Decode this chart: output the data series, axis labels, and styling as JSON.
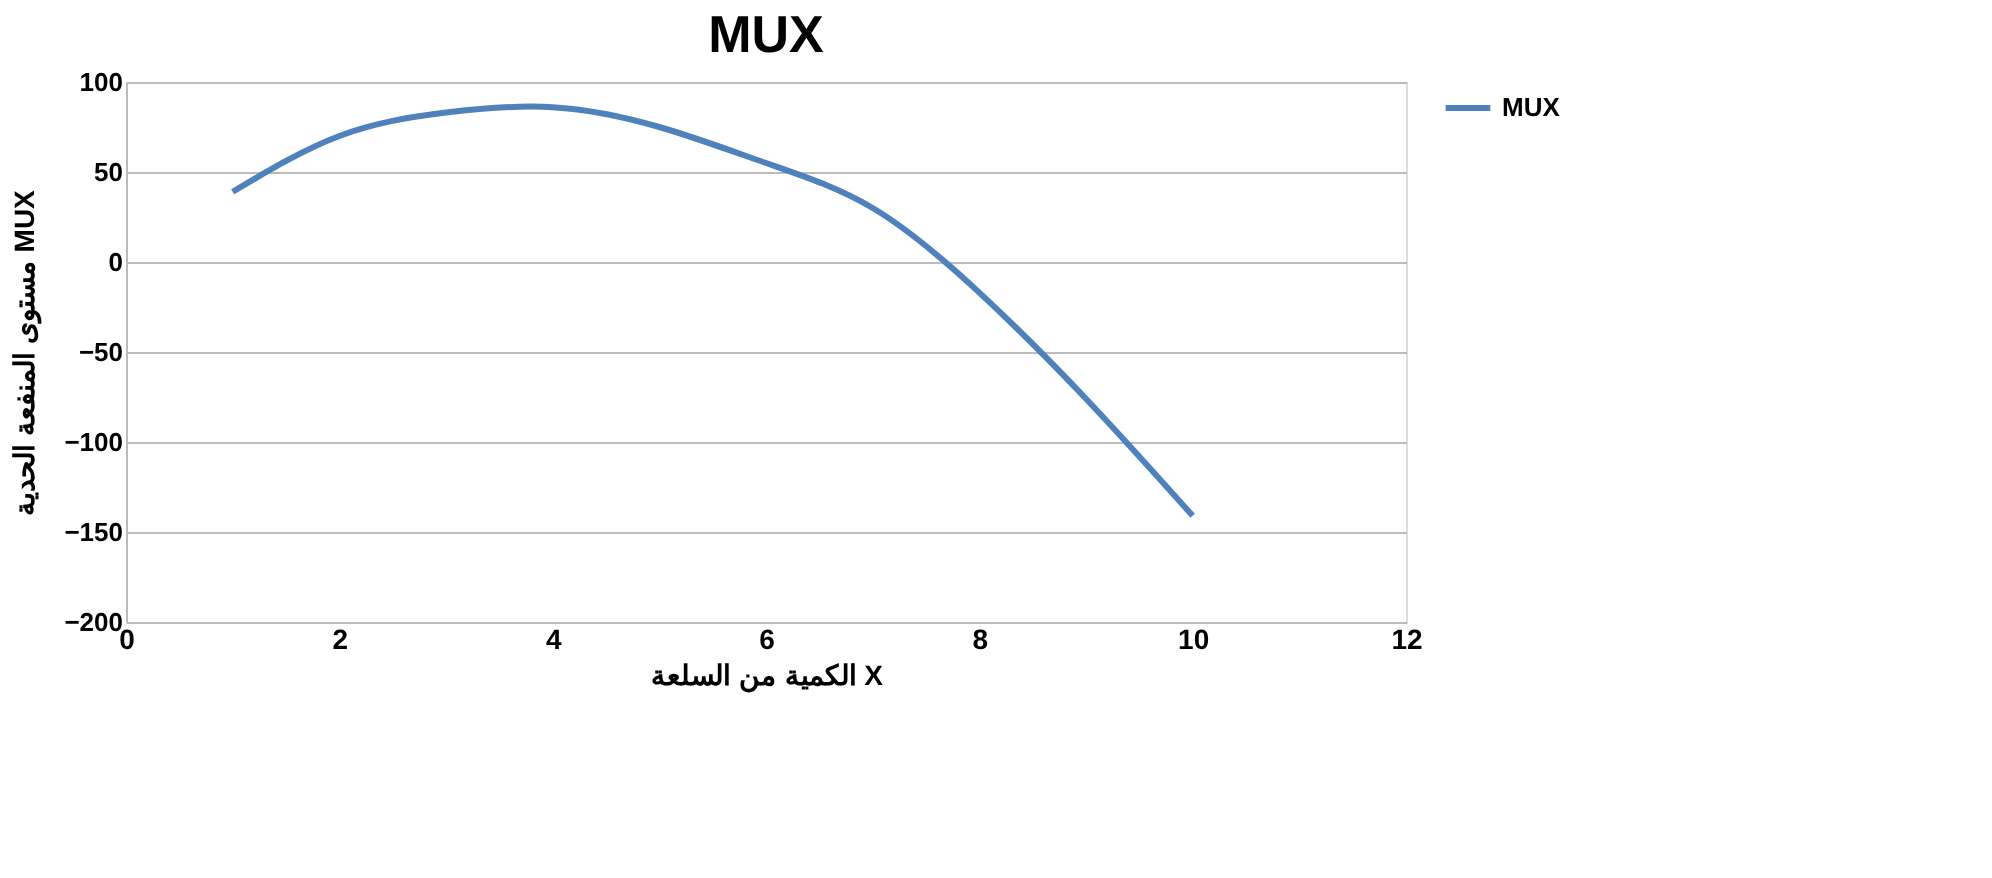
{
  "chart_data": {
    "type": "line",
    "title": "MUX",
    "xlabel": "الكمية من السلعة X",
    "ylabel": "مستوى المنفعة الحدية MUX",
    "x": [
      1,
      2,
      3,
      4,
      5,
      6,
      7,
      8,
      9,
      10
    ],
    "series": [
      {
        "name": "MUX",
        "color": "#4f81bd",
        "values": [
          39,
          70,
          83,
          86,
          75,
          55,
          30,
          -17,
          -76,
          -141
        ]
      }
    ],
    "xlim": [
      0,
      12
    ],
    "xticks": [
      0,
      2,
      4,
      6,
      8,
      10,
      12
    ],
    "ylim": [
      -200,
      100
    ],
    "yticks": [
      -200,
      -150,
      -100,
      -50,
      0,
      50,
      100
    ],
    "grid": "y",
    "legend": "right",
    "marker": "none",
    "line_style": "solid"
  }
}
